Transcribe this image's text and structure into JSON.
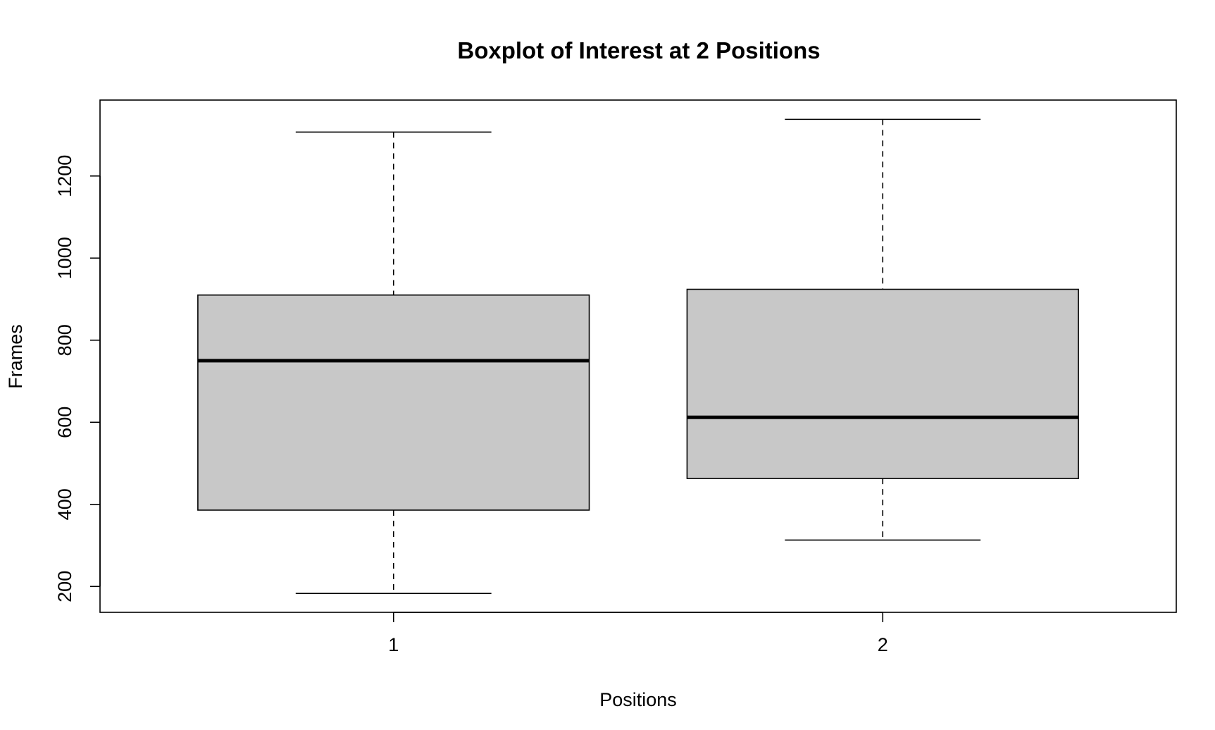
{
  "chart_data": {
    "type": "boxplot",
    "title": "Boxplot of Interest at 2 Positions",
    "xlabel": "Positions",
    "ylabel": "Frames",
    "categories": [
      "1",
      "2"
    ],
    "boxes": [
      {
        "category": "1",
        "whisker_low": 183,
        "q1": 386,
        "median": 750,
        "q3": 910,
        "whisker_high": 1307
      },
      {
        "category": "2",
        "whisker_low": 313,
        "q1": 463,
        "median": 612,
        "q3": 924,
        "whisker_high": 1338
      }
    ],
    "yticks": [
      200,
      400,
      600,
      800,
      1000,
      1200
    ],
    "ylim": [
      137,
      1385
    ],
    "grid": false,
    "box_fill": "#c8c8c8",
    "line_color": "#000000"
  }
}
